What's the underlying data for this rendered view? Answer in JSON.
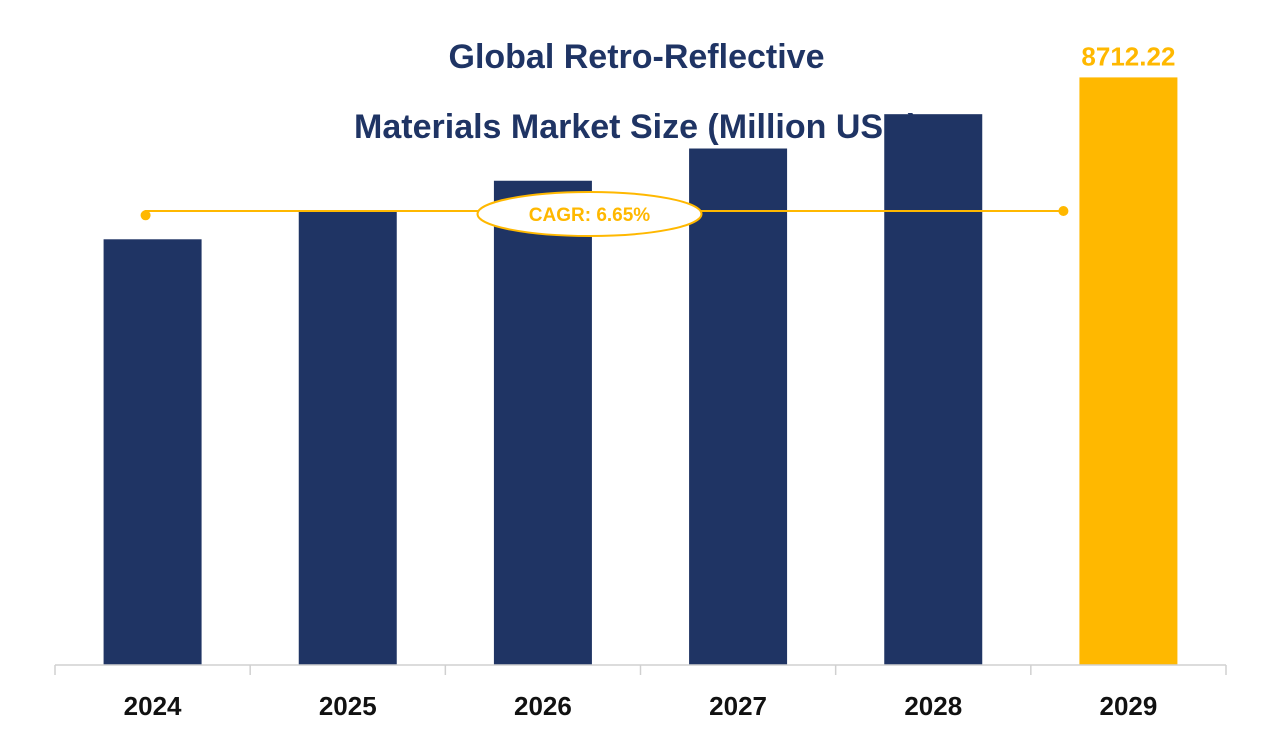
{
  "title_line1": "Global Retro-Reflective",
  "title_line2": "Materials Market Size (Million USD)",
  "cagr_label": "CAGR: 6.65%",
  "colors": {
    "bar": "#1f3464",
    "highlight": "#ffb800",
    "title": "#1f3464",
    "axis": "#d0d0d0"
  },
  "chart_data": {
    "type": "bar",
    "title": "Global Retro-Reflective Materials Market Size (Million USD)",
    "categories": [
      "2024",
      "2025",
      "2026",
      "2027",
      "2028",
      "2029"
    ],
    "values": [
      6312,
      6732,
      7180,
      7658,
      8167,
      8712.22
    ],
    "highlight_index": 5,
    "data_labels": [
      null,
      null,
      null,
      null,
      null,
      "8712.22"
    ],
    "annotation": "CAGR: 6.65%",
    "ylim": [
      0,
      9000
    ],
    "grid": false,
    "legend": "none"
  }
}
